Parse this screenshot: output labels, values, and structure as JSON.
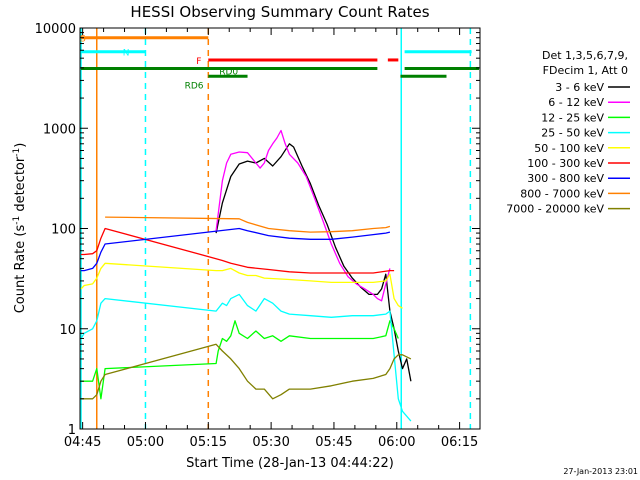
{
  "chart_data": {
    "type": "line",
    "title": "HESSI Observing Summary Count Rates",
    "xlabel": "Start Time (28-Jan-13 04:44:22)",
    "ylabel_main": "Count Rate (s",
    "ylabel_sup1": "-1",
    "ylabel_mid": " detector",
    "ylabel_sup2": "-1",
    "ylabel_end": ")",
    "yscale": "log",
    "ylim": [
      1,
      10000
    ],
    "xlim_minutes": [
      0,
      95.5
    ],
    "x_ticks": [
      {
        "label": "04:45",
        "t": 0.63
      },
      {
        "label": "05:00",
        "t": 15.63
      },
      {
        "label": "05:15",
        "t": 30.63
      },
      {
        "label": "05:30",
        "t": 45.63
      },
      {
        "label": "05:45",
        "t": 60.63
      },
      {
        "label": "06:00",
        "t": 75.63
      },
      {
        "label": "06:15",
        "t": 90.63
      }
    ],
    "y_ticks": [
      {
        "label": "1",
        "v": 1
      },
      {
        "label": "10",
        "v": 10
      },
      {
        "label": "100",
        "v": 100
      },
      {
        "label": "1000",
        "v": 1000
      },
      {
        "label": "10000",
        "v": 10000
      }
    ],
    "legend": {
      "header1": "Det 1,3,5,6,7,9,",
      "header2": "FDecim 1, Att 0",
      "position": "right"
    },
    "series": [
      {
        "name": "3 - 6 keV",
        "color": "#000000",
        "points": [
          [
            32.5,
            90
          ],
          [
            34,
            180
          ],
          [
            36,
            330
          ],
          [
            38,
            440
          ],
          [
            40,
            470
          ],
          [
            42,
            450
          ],
          [
            44,
            500
          ],
          [
            46,
            420
          ],
          [
            48,
            520
          ],
          [
            50,
            700
          ],
          [
            51,
            650
          ],
          [
            53,
            420
          ],
          [
            55,
            280
          ],
          [
            57,
            170
          ],
          [
            59,
            110
          ],
          [
            61,
            65
          ],
          [
            63,
            42
          ],
          [
            65,
            32
          ],
          [
            67,
            26
          ],
          [
            69,
            22
          ],
          [
            71,
            22
          ],
          [
            72,
            25
          ],
          [
            73,
            35
          ],
          [
            74,
            15
          ],
          [
            75,
            10
          ],
          [
            76,
            6
          ],
          [
            77,
            4
          ],
          [
            78,
            5
          ],
          [
            79,
            3
          ]
        ]
      },
      {
        "name": "6 - 12 keV",
        "color": "#ff00ff",
        "points": [
          [
            32.5,
            95
          ],
          [
            34,
            300
          ],
          [
            35,
            450
          ],
          [
            36,
            550
          ],
          [
            38,
            580
          ],
          [
            40,
            570
          ],
          [
            42,
            450
          ],
          [
            43,
            400
          ],
          [
            44,
            450
          ],
          [
            45,
            600
          ],
          [
            46,
            700
          ],
          [
            47,
            800
          ],
          [
            48,
            950
          ],
          [
            49,
            700
          ],
          [
            50,
            550
          ],
          [
            52,
            450
          ],
          [
            54,
            330
          ],
          [
            56,
            200
          ],
          [
            58,
            120
          ],
          [
            60,
            70
          ],
          [
            62,
            45
          ],
          [
            64,
            33
          ],
          [
            66,
            28
          ],
          [
            68,
            25
          ],
          [
            70,
            22
          ],
          [
            71,
            20
          ],
          [
            72,
            19
          ],
          [
            73,
            28
          ],
          [
            74,
            40
          ]
        ]
      },
      {
        "name": "12 - 25 keV",
        "color": "#00ff00",
        "points": [
          [
            -1,
            3
          ],
          [
            3,
            3
          ],
          [
            4,
            4
          ],
          [
            5,
            2
          ],
          [
            6,
            4
          ],
          [
            32.5,
            4.5
          ],
          [
            33,
            6
          ],
          [
            34,
            8
          ],
          [
            35,
            7.5
          ],
          [
            36,
            8.5
          ],
          [
            37,
            12
          ],
          [
            38,
            9
          ],
          [
            40,
            8
          ],
          [
            42,
            9.5
          ],
          [
            44,
            8
          ],
          [
            46,
            8.5
          ],
          [
            48,
            7.5
          ],
          [
            50,
            8.5
          ],
          [
            55,
            8
          ],
          [
            60,
            8
          ],
          [
            65,
            8
          ],
          [
            70,
            8
          ],
          [
            73,
            8.5
          ],
          [
            74,
            12
          ],
          [
            75,
            10
          ],
          [
            76,
            8
          ]
        ]
      },
      {
        "name": "25 - 50 keV",
        "color": "#00ffff",
        "points": [
          [
            -1,
            8
          ],
          [
            1,
            9
          ],
          [
            3,
            10
          ],
          [
            4,
            12
          ],
          [
            5,
            18
          ],
          [
            6,
            20
          ],
          [
            32.5,
            15
          ],
          [
            34,
            18
          ],
          [
            35,
            17
          ],
          [
            36,
            20
          ],
          [
            38,
            22
          ],
          [
            40,
            17
          ],
          [
            42,
            15
          ],
          [
            44,
            20
          ],
          [
            46,
            18
          ],
          [
            48,
            15
          ],
          [
            50,
            14
          ],
          [
            55,
            13.5
          ],
          [
            60,
            13
          ],
          [
            65,
            13.5
          ],
          [
            70,
            13.5
          ],
          [
            73,
            14
          ],
          [
            74,
            15
          ],
          [
            76,
            2
          ],
          [
            77,
            1.5
          ],
          [
            79,
            1.2
          ]
        ]
      },
      {
        "name": "50 - 100 keV",
        "color": "#ffff00",
        "points": [
          [
            -1,
            25
          ],
          [
            1,
            27
          ],
          [
            3,
            28
          ],
          [
            4,
            32
          ],
          [
            5,
            40
          ],
          [
            6,
            45
          ],
          [
            32.5,
            38
          ],
          [
            34,
            38
          ],
          [
            36,
            40
          ],
          [
            38,
            36
          ],
          [
            40,
            34
          ],
          [
            42,
            34
          ],
          [
            44,
            32
          ],
          [
            50,
            31
          ],
          [
            55,
            30
          ],
          [
            60,
            29
          ],
          [
            65,
            29
          ],
          [
            70,
            29
          ],
          [
            73,
            30
          ],
          [
            74,
            35
          ],
          [
            75,
            20
          ],
          [
            76,
            17
          ],
          [
            77,
            16
          ]
        ]
      },
      {
        "name": "100 - 300 keV",
        "color": "#ff0000",
        "points": [
          [
            -1,
            55
          ],
          [
            1,
            55
          ],
          [
            3,
            56
          ],
          [
            4,
            60
          ],
          [
            5,
            80
          ],
          [
            6,
            100
          ],
          [
            32.5,
            50
          ],
          [
            34,
            48
          ],
          [
            36,
            45
          ],
          [
            38,
            43
          ],
          [
            40,
            41
          ],
          [
            45,
            39
          ],
          [
            50,
            37
          ],
          [
            55,
            36
          ],
          [
            60,
            36
          ],
          [
            65,
            36
          ],
          [
            70,
            36
          ],
          [
            74,
            38
          ],
          [
            75,
            38
          ]
        ]
      },
      {
        "name": "300 - 800 keV",
        "color": "#0000ff",
        "points": [
          [
            -1,
            38
          ],
          [
            1,
            38
          ],
          [
            3,
            40
          ],
          [
            4,
            45
          ],
          [
            5,
            58
          ],
          [
            6,
            70
          ],
          [
            38,
            100
          ],
          [
            40,
            95
          ],
          [
            45,
            85
          ],
          [
            50,
            80
          ],
          [
            55,
            78
          ],
          [
            60,
            78
          ],
          [
            65,
            82
          ],
          [
            70,
            87
          ],
          [
            73,
            90
          ],
          [
            74,
            92
          ]
        ]
      },
      {
        "name": "800 - 7000 keV",
        "color": "#ff8000",
        "points": [
          [
            6,
            130
          ],
          [
            38,
            125
          ],
          [
            40,
            115
          ],
          [
            45,
            100
          ],
          [
            50,
            95
          ],
          [
            55,
            92
          ],
          [
            60,
            93
          ],
          [
            65,
            95
          ],
          [
            70,
            100
          ],
          [
            73,
            102
          ],
          [
            74,
            105
          ]
        ]
      },
      {
        "name": "7000 - 20000 keV",
        "color": "#808000",
        "points": [
          [
            -1,
            2
          ],
          [
            1,
            2
          ],
          [
            3,
            2
          ],
          [
            4,
            2.2
          ],
          [
            5,
            3
          ],
          [
            6,
            3.5
          ],
          [
            32.5,
            7
          ],
          [
            34,
            6
          ],
          [
            36,
            5
          ],
          [
            38,
            4
          ],
          [
            40,
            3
          ],
          [
            42,
            2.5
          ],
          [
            44,
            2.5
          ],
          [
            46,
            2
          ],
          [
            48,
            2.2
          ],
          [
            50,
            2.5
          ],
          [
            55,
            2.5
          ],
          [
            60,
            2.7
          ],
          [
            65,
            3
          ],
          [
            70,
            3.2
          ],
          [
            73,
            3.5
          ],
          [
            74,
            4
          ],
          [
            75,
            5
          ],
          [
            76,
            5.5
          ],
          [
            77,
            5.5
          ],
          [
            79,
            5
          ]
        ]
      }
    ],
    "flag_bars": [
      {
        "label": "S",
        "color": "#ff8000",
        "level": 8000,
        "start": -0.5,
        "end": 30.63
      },
      {
        "label": "N",
        "color": "#00ffff",
        "level": 5800,
        "start": -0.5,
        "end": 15.63
      },
      {
        "label": "F",
        "color": "#ff0000",
        "level": 4800,
        "start": 30.63,
        "end": 71
      },
      {
        "label": "RD0",
        "color": "#008000",
        "level": 3950,
        "start": -0.5,
        "end": 71
      },
      {
        "label": "RD6",
        "color": "#008000",
        "level": 3300,
        "start": 30.63,
        "end": 40
      }
    ],
    "flag_bars_extra": [
      {
        "color": "#ff0000",
        "level": 4800,
        "start": 73.5,
        "end": 76
      },
      {
        "color": "#00ffff",
        "level": 5800,
        "start": 77.5,
        "end": 93.5
      },
      {
        "color": "#008000",
        "level": 3950,
        "start": 77.5,
        "end": 95.5
      },
      {
        "color": "#008000",
        "level": 3300,
        "start": 76.5,
        "end": 87.5
      }
    ],
    "vlines": [
      {
        "t": -0.5,
        "color": "#00ffff",
        "style": "solid"
      },
      {
        "t": 4,
        "color": "#ff8000",
        "style": "solid"
      },
      {
        "t": 15.63,
        "color": "#00ffff",
        "style": "dashed"
      },
      {
        "t": 30.63,
        "color": "#ff8000",
        "style": "dashed"
      },
      {
        "t": 76.7,
        "color": "#00ffff",
        "style": "solid"
      },
      {
        "t": 93.2,
        "color": "#00ffff",
        "style": "dashed"
      }
    ],
    "grid": false
  },
  "timestamp": "27-Jan-2013 23:01"
}
